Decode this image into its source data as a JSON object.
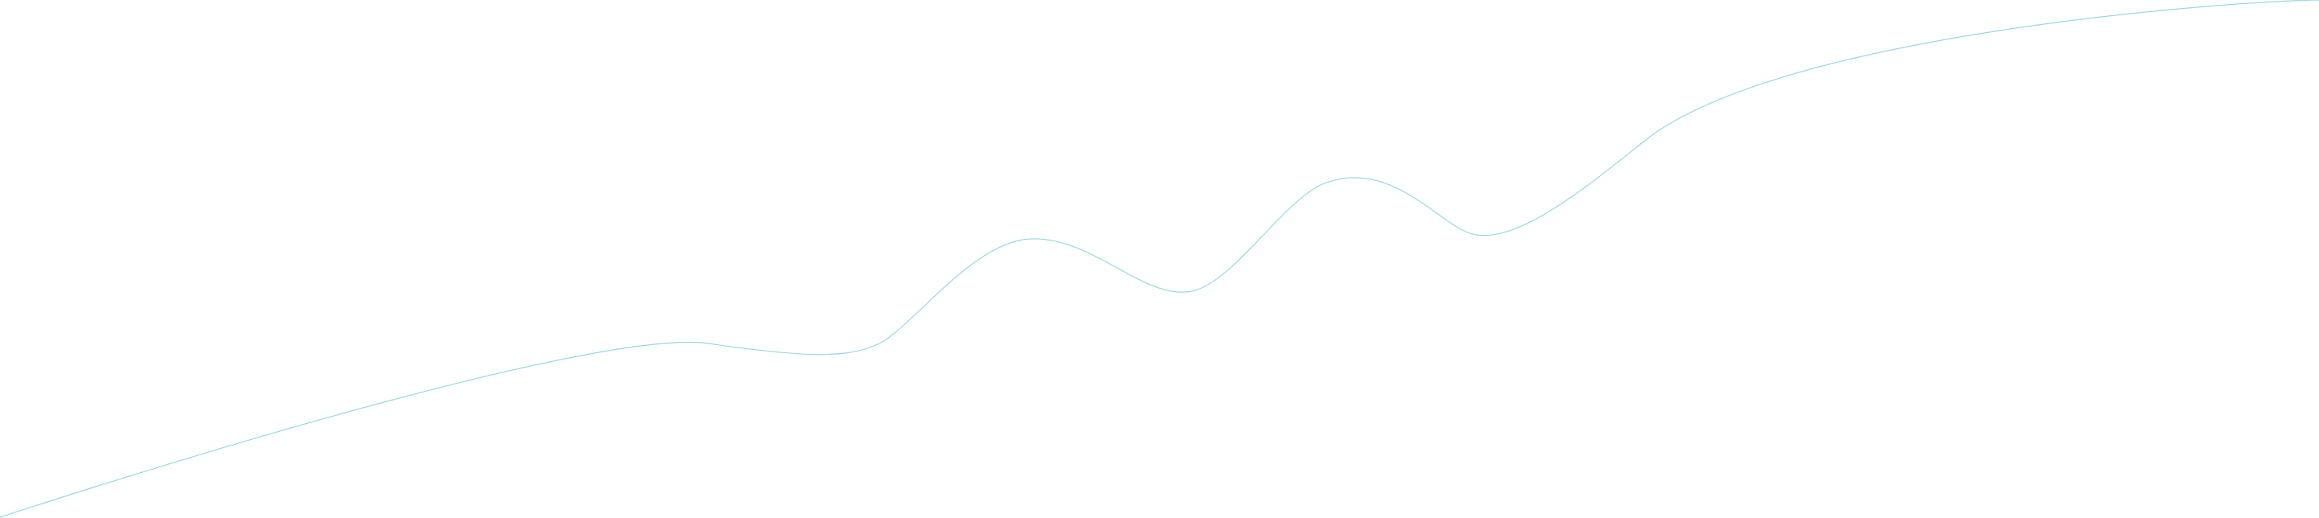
{
  "background": {
    "color": "#ffffff"
  },
  "wave": {
    "stroke_color": "#9ad7e6"
  }
}
